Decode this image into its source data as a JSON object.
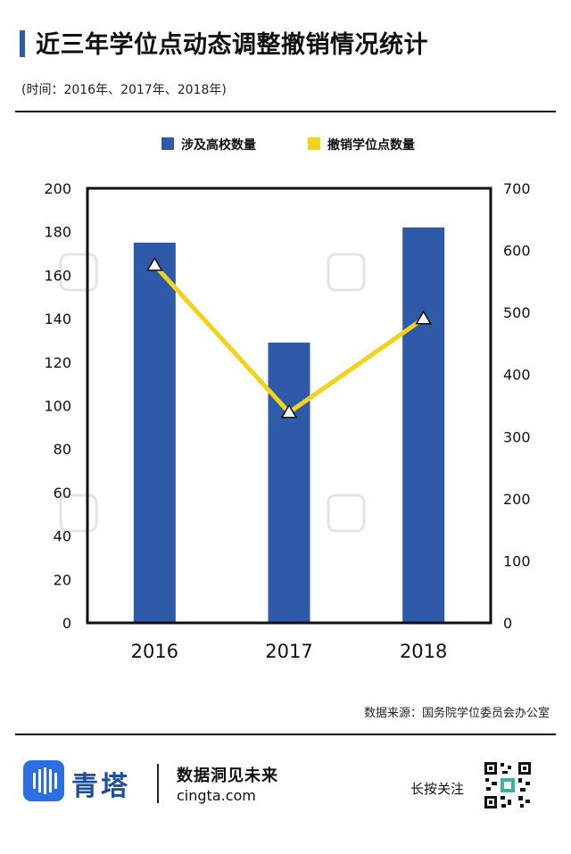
{
  "header": {
    "title": "近三年学位点动态调整撤销情况统计",
    "subtitle": "(时间：2016年、2017年、2018年)"
  },
  "chart_data": {
    "type": "bar",
    "categories": [
      "2016",
      "2017",
      "2018"
    ],
    "series": [
      {
        "name": "涉及高校数量",
        "kind": "bar",
        "axis": "left",
        "color": "#2f5aa8",
        "values": [
          175,
          129,
          182
        ]
      },
      {
        "name": "撤销学位点数量",
        "kind": "line",
        "axis": "right",
        "color": "#f2d21b",
        "values": [
          576,
          339,
          490
        ]
      }
    ],
    "y_left": {
      "min": 0,
      "max": 200,
      "ticks": [
        0,
        20,
        40,
        60,
        80,
        100,
        120,
        140,
        160,
        180,
        200
      ]
    },
    "y_right": {
      "min": 0,
      "max": 700,
      "ticks": [
        0,
        100,
        200,
        300,
        400,
        500,
        600,
        700
      ]
    },
    "legend_position": "top",
    "grid": false
  },
  "source": "数据来源：国务院学位委员会办公室",
  "footer": {
    "brand": "青塔",
    "slogan": "数据洞见未来",
    "website": "cingta.com",
    "follow": "长按关注"
  },
  "colors": {
    "accent": "#2f5aa8",
    "line": "#f2d21b",
    "brand": "#1d4f9c"
  },
  "icons": {
    "logo": "cingta-logo-icon",
    "qr": "qr-code-icon"
  }
}
